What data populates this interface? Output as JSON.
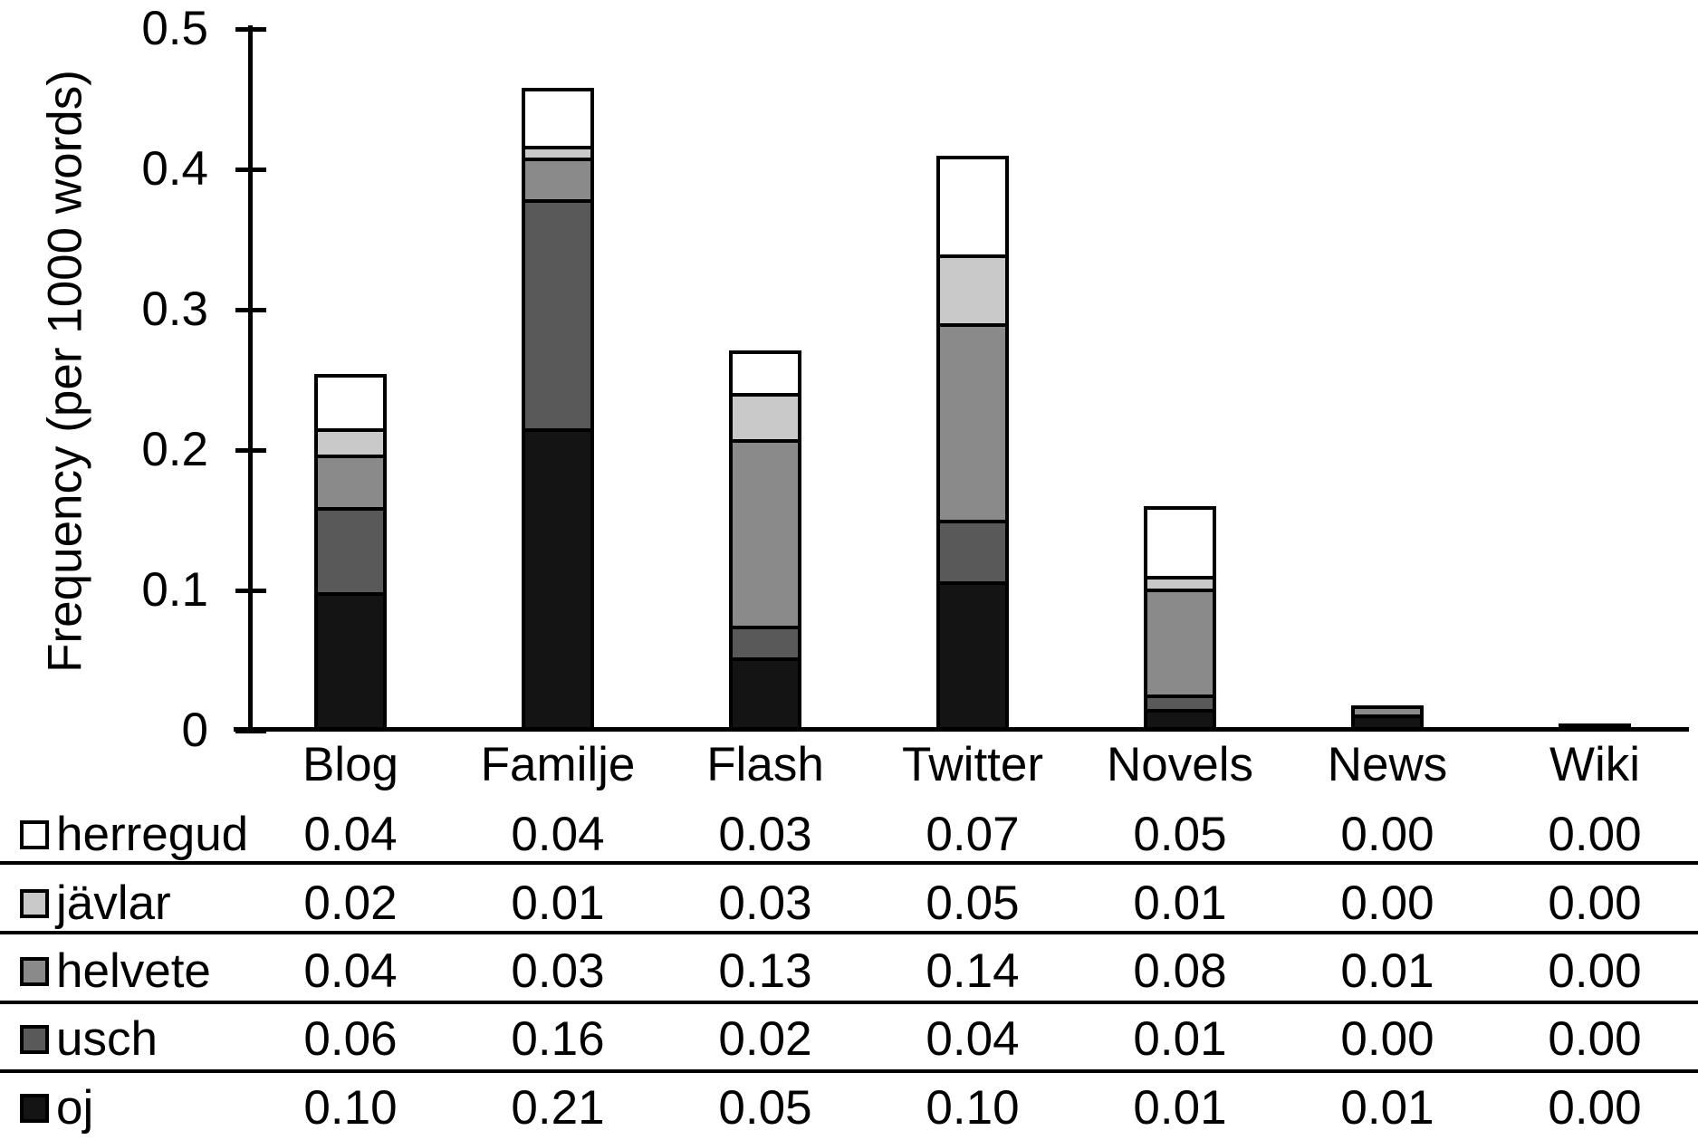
{
  "chart_data": {
    "type": "bar",
    "stacked": true,
    "title": "",
    "xlabel": "",
    "ylabel": "Frequency (per 1000 words)",
    "ylim": [
      0,
      0.5
    ],
    "grid": false,
    "legend_position": "table-left-of-rows",
    "yticks": [
      {
        "value": 0.0,
        "label": "0"
      },
      {
        "value": 0.1,
        "label": "0.1"
      },
      {
        "value": 0.2,
        "label": "0.2"
      },
      {
        "value": 0.3,
        "label": "0.3"
      },
      {
        "value": 0.4,
        "label": "0.4"
      },
      {
        "value": 0.5,
        "label": "0.5"
      }
    ],
    "categories": [
      "Blog",
      "Familje",
      "Flash",
      "Twitter",
      "Novels",
      "News",
      "Wiki"
    ],
    "series": [
      {
        "name": "oj",
        "color": "#141414",
        "display": [
          "0.10",
          "0.21",
          "0.05",
          "0.10",
          "0.01",
          "0.01",
          "0.00"
        ],
        "plotted": [
          0.096,
          0.213,
          0.05,
          0.104,
          0.013,
          0.009,
          0.004
        ]
      },
      {
        "name": "usch",
        "color": "#595959",
        "display": [
          "0.06",
          "0.16",
          "0.02",
          "0.04",
          "0.01",
          "0.00",
          "0.00"
        ],
        "plotted": [
          0.061,
          0.163,
          0.022,
          0.044,
          0.01,
          0,
          0
        ]
      },
      {
        "name": "helvete",
        "color": "#8a8a8a",
        "display": [
          "0.04",
          "0.03",
          "0.13",
          "0.14",
          "0.08",
          "0.01",
          "0.00"
        ],
        "plotted": [
          0.037,
          0.03,
          0.133,
          0.14,
          0.076,
          0.009,
          0
        ]
      },
      {
        "name": "jävlar",
        "color": "#c9c9c9",
        "display": [
          "0.02",
          "0.01",
          "0.03",
          "0.05",
          "0.01",
          "0.00",
          "0.00"
        ],
        "plotted": [
          0.019,
          0.008,
          0.033,
          0.049,
          0.009,
          0,
          0
        ]
      },
      {
        "name": "herregud",
        "color": "#ffffff",
        "display": [
          "0.04",
          "0.04",
          "0.03",
          "0.07",
          "0.05",
          "0.00",
          "0.00"
        ],
        "plotted": [
          0.041,
          0.044,
          0.033,
          0.073,
          0.052,
          0,
          0
        ]
      }
    ]
  },
  "table": {
    "row_order": [
      "herregud",
      "jävlar",
      "helvete",
      "usch",
      "oj"
    ]
  }
}
